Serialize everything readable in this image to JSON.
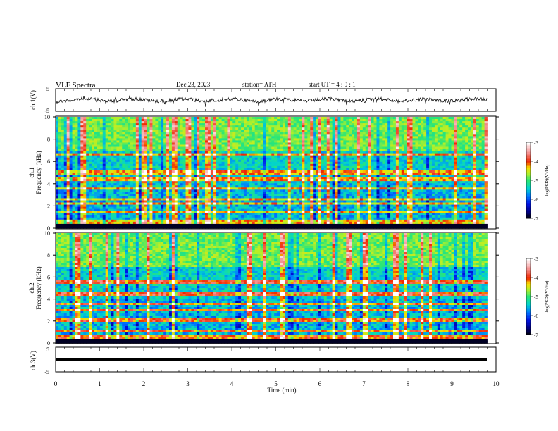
{
  "header": {
    "title": "VLF  Spectra",
    "date": "Dec.23, 2023",
    "station": "station= ATH",
    "start_ut": "start  UT  =   4  : 0   : 1"
  },
  "chart_data": [
    {
      "type": "line",
      "name": "ch1-waveform",
      "ylabel": "ch.1(V)",
      "ylim": [
        -5,
        5
      ],
      "yticks": [
        "5",
        "-5"
      ],
      "xlim": [
        0,
        10
      ],
      "trace_level": 0,
      "trace_amplitude": 1.0
    },
    {
      "type": "heatmap",
      "name": "ch1-spectrogram",
      "ylabel": "ch.1\nFrequency  (kHz)",
      "ylim": [
        0,
        10
      ],
      "yticks": [
        "0",
        "2",
        "4",
        "6",
        "8",
        "10"
      ],
      "xlim": [
        0,
        9.8
      ],
      "bands_khz": [
        0.2,
        0.6,
        1.4,
        2.2,
        2.6,
        3.6,
        4.4,
        5.0,
        6.6
      ],
      "colorbar": {
        "label": "log(PSD)(V²/Hz)",
        "ticks": [
          "-3",
          "-4",
          "-5",
          "-6",
          "-7"
        ],
        "range": [
          -7,
          -3
        ]
      }
    },
    {
      "type": "heatmap",
      "name": "ch2-spectrogram",
      "ylabel": "ch.2\nFrequency  (kHz)",
      "ylim": [
        0,
        10
      ],
      "yticks": [
        "0",
        "2",
        "4",
        "6",
        "8",
        "10"
      ],
      "xlim": [
        0,
        9.8
      ],
      "bands_khz": [
        0.2,
        0.6,
        1.0,
        2.0,
        2.2,
        3.0,
        3.6,
        4.4,
        5.6
      ],
      "colorbar": {
        "label": "log(PSD)(V²/Hz)",
        "ticks": [
          "-3",
          "-4",
          "-5",
          "-6",
          "-7"
        ],
        "range": [
          -7,
          -3
        ]
      }
    },
    {
      "type": "line",
      "name": "ch3-waveform",
      "ylabel": "ch.3(V)",
      "ylim": [
        -5,
        5
      ],
      "yticks": [
        "5",
        "-5"
      ],
      "xlim": [
        0,
        10
      ],
      "trace_level": 0,
      "trace_amplitude": 0.05
    }
  ],
  "xaxis": {
    "label": "Time  (min)",
    "ticks": [
      "0",
      "1",
      "2",
      "3",
      "4",
      "5",
      "6",
      "7",
      "8",
      "9",
      "10"
    ]
  }
}
